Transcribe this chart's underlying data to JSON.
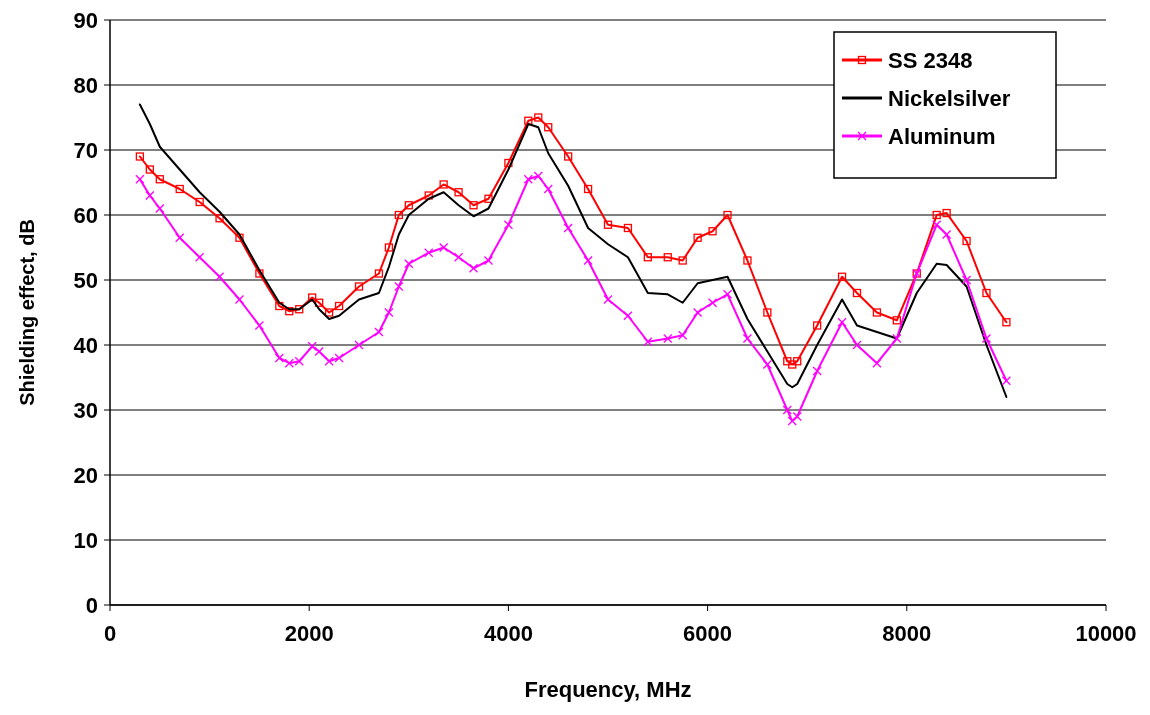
{
  "chart_data": {
    "type": "line",
    "xlabel": "Frequency, MHz",
    "ylabel": "Shielding effect, dB",
    "xlim": [
      0,
      10000
    ],
    "xticks": [
      0,
      2000,
      4000,
      6000,
      8000,
      10000
    ],
    "ylim": [
      0,
      90
    ],
    "yticks": [
      0,
      10,
      20,
      30,
      40,
      50,
      60,
      70,
      80,
      90
    ],
    "grid": "y",
    "legend": "top right",
    "x": [
      300,
      400,
      500,
      700,
      900,
      1100,
      1300,
      1500,
      1700,
      1800,
      1900,
      2030,
      2100,
      2200,
      2300,
      2500,
      2700,
      2800,
      2900,
      3000,
      3200,
      3350,
      3500,
      3650,
      3800,
      4000,
      4200,
      4300,
      4400,
      4600,
      4800,
      5000,
      5200,
      5400,
      5600,
      5750,
      5900,
      6050,
      6200,
      6400,
      6600,
      6800,
      6850,
      6900,
      7100,
      7350,
      7500,
      7700,
      7900,
      8100,
      8300,
      8400,
      8600,
      8800,
      9000
    ],
    "series": [
      {
        "name": "SS 2348",
        "color": "#ff0000",
        "marker": "square",
        "values": [
          69,
          67,
          65.5,
          64,
          62,
          59.5,
          56.5,
          51,
          46,
          45.2,
          45.5,
          47.3,
          46.5,
          45,
          46,
          49,
          51,
          55,
          60,
          61.5,
          63,
          64.7,
          63.5,
          61.5,
          62.5,
          68,
          74.5,
          75,
          73.5,
          69,
          64,
          58.5,
          58,
          53.5,
          53.5,
          53,
          56.5,
          57.5,
          60,
          53,
          45,
          37.5,
          37,
          37.5,
          43,
          50.5,
          48,
          45,
          43.8,
          51,
          60,
          60.3,
          56,
          48,
          43.5
        ]
      },
      {
        "name": "Nickelsilver",
        "color": "#000000",
        "marker": "none",
        "values": [
          77,
          74,
          70.5,
          67,
          63.5,
          60.5,
          57,
          51.5,
          46.5,
          45.5,
          45.5,
          47,
          45.5,
          44,
          44.5,
          47,
          48,
          52,
          57,
          60,
          62.5,
          63.5,
          61.5,
          59.8,
          61,
          67,
          74,
          73.5,
          69.5,
          64.5,
          58,
          55.5,
          53.5,
          48,
          47.8,
          46.5,
          49.5,
          50,
          50.5,
          44,
          39,
          34,
          33.5,
          34,
          40,
          47,
          43,
          42,
          41,
          48,
          52.5,
          52.3,
          49,
          40,
          32
        ]
      },
      {
        "name": "Aluminum",
        "color": "#ff00ff",
        "marker": "cross",
        "values": [
          65.5,
          63,
          61,
          56.5,
          53.5,
          50.5,
          47,
          43,
          38,
          37.2,
          37.5,
          39.8,
          39,
          37.5,
          38,
          40,
          42,
          45,
          49,
          52.5,
          54.2,
          55,
          53.5,
          51.8,
          53,
          58.5,
          65.5,
          66,
          64,
          58,
          53,
          47,
          44.5,
          40.5,
          41,
          41.5,
          45,
          46.5,
          47.8,
          41,
          37,
          30,
          28.3,
          29,
          36,
          43.5,
          40,
          37.2,
          41,
          51,
          58.5,
          57,
          50,
          41,
          34.5
        ]
      }
    ]
  }
}
